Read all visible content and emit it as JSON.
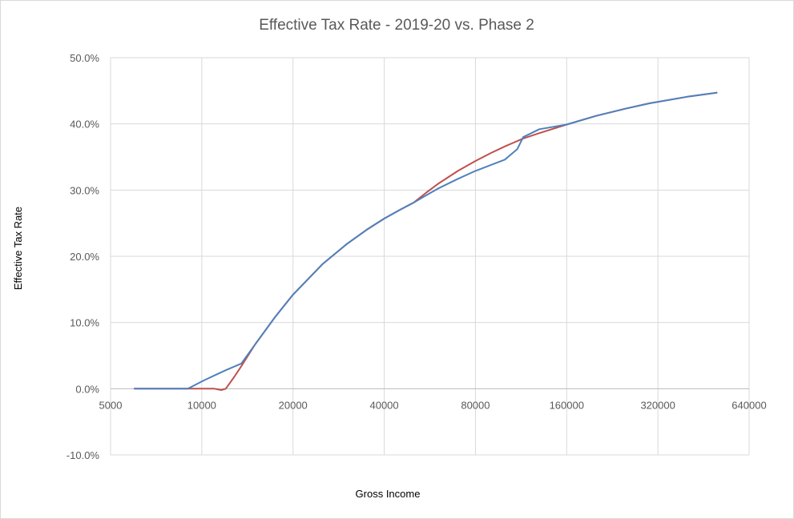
{
  "chart_data": {
    "type": "line",
    "title": "Effective Tax Rate - 2019-20 vs. Phase 2",
    "xlabel": "Gross Income",
    "ylabel": "Effective Tax Rate",
    "x_scale": "log2",
    "xlim": [
      5000,
      640000
    ],
    "ylim": [
      -0.1,
      0.5
    ],
    "x_ticks": [
      5000,
      10000,
      20000,
      40000,
      80000,
      160000,
      320000,
      640000
    ],
    "x_tick_labels": [
      "5000",
      "10000",
      "20000",
      "40000",
      "80000",
      "160000",
      "320000",
      "640000"
    ],
    "y_ticks": [
      -0.1,
      0.0,
      0.1,
      0.2,
      0.3,
      0.4,
      0.5
    ],
    "y_tick_labels": [
      "-10.0%",
      "0.0%",
      "10.0%",
      "20.0%",
      "30.0%",
      "40.0%",
      "50.0%"
    ],
    "grid": true,
    "legend": "none",
    "colors": {
      "series_red": "#c0504d",
      "series_blue": "#4f81bd",
      "grid": "#d9d9d9"
    },
    "series": [
      {
        "color": "#c0504d",
        "x": [
          6000,
          8000,
          10000,
          11000,
          11600,
          12000,
          12800,
          13500,
          15000,
          17500,
          20000,
          25000,
          30000,
          35000,
          40000,
          45000,
          50000,
          55000,
          60000,
          70000,
          80000,
          90000,
          100000,
          115000,
          130000,
          160000,
          200000,
          250000,
          300000,
          400000,
          500000
        ],
        "y": [
          0.0,
          0.0,
          0.0,
          0.0,
          -0.002,
          0.0,
          0.018,
          0.034,
          0.067,
          0.109,
          0.142,
          0.188,
          0.218,
          0.24,
          0.257,
          0.27,
          0.281,
          0.296,
          0.309,
          0.329,
          0.344,
          0.356,
          0.366,
          0.378,
          0.386,
          0.399,
          0.412,
          0.423,
          0.431,
          0.441,
          0.447
        ]
      },
      {
        "color": "#4f81bd",
        "x": [
          6000,
          8000,
          9000,
          10000,
          11000,
          12000,
          13500,
          15000,
          17500,
          20000,
          25000,
          30000,
          35000,
          40000,
          45000,
          50000,
          55000,
          60000,
          70000,
          80000,
          90000,
          100000,
          110000,
          115000,
          130000,
          160000,
          200000,
          250000,
          300000,
          400000,
          500000
        ],
        "y": [
          0.0,
          0.0,
          0.0,
          0.011,
          0.02,
          0.028,
          0.038,
          0.067,
          0.109,
          0.142,
          0.188,
          0.218,
          0.24,
          0.257,
          0.27,
          0.281,
          0.292,
          0.302,
          0.317,
          0.329,
          0.338,
          0.346,
          0.362,
          0.38,
          0.392,
          0.399,
          0.412,
          0.423,
          0.431,
          0.441,
          0.447
        ]
      }
    ]
  }
}
